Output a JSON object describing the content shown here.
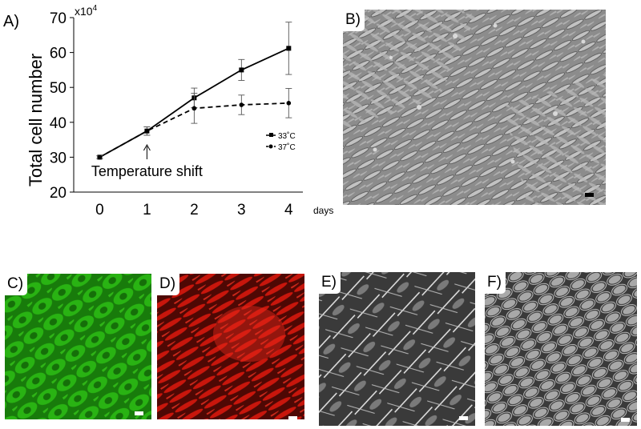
{
  "panels": {
    "a": "A)",
    "b": "B)",
    "c": "C)",
    "d": "D)",
    "e": "E)",
    "f": "F)"
  },
  "colors": {
    "fluorescence_green": "#22b80e",
    "fluorescence_red": "#d0180e",
    "phase_contrast": "#8a8a8a"
  },
  "chart_data": {
    "type": "line",
    "title": "",
    "ylabel": "Total cell number",
    "y_multiplier": "x10",
    "y_multiplier_exp": "4",
    "xlabel": "days",
    "x": [
      0,
      1,
      2,
      3,
      4
    ],
    "xticks": [
      "0",
      "1",
      "2",
      "3",
      "4"
    ],
    "yticks": [
      "20",
      "30",
      "40",
      "50",
      "60",
      "70"
    ],
    "ylim": [
      20,
      70
    ],
    "xlim": [
      -0.55,
      4.3
    ],
    "grid": false,
    "legend_position": "right",
    "series": [
      {
        "name": "33˚C",
        "style": "solid",
        "marker": "square",
        "values": [
          30,
          37.5,
          47,
          55,
          61.2
        ],
        "errors": [
          0.4,
          1.2,
          2.8,
          3.0,
          7.5
        ]
      },
      {
        "name": "37˚C",
        "style": "dashed",
        "marker": "circle",
        "values": [
          30,
          37.5,
          44,
          45,
          45.5
        ],
        "errors": [
          0.4,
          1.2,
          4.3,
          2.8,
          4.2
        ]
      }
    ],
    "annotation": {
      "text": "Temperature shift",
      "x": 1
    }
  }
}
